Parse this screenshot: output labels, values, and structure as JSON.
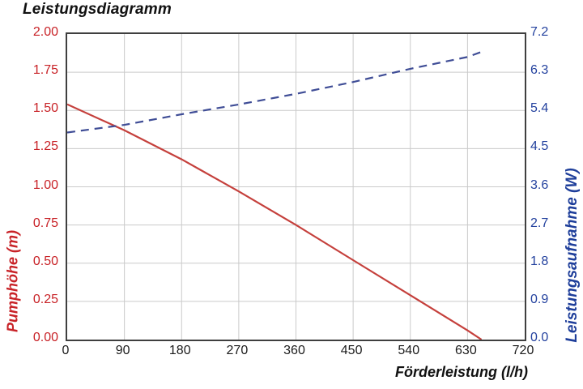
{
  "title": "Leistungsdiagramm",
  "axes": {
    "x_label": "Förderleistung (l/h)",
    "left_label": "Pumphöhe (m)",
    "right_label": "Leistungsaufnahme (W)"
  },
  "colors": {
    "red_text": "#c82227",
    "red_line": "#c5403c",
    "blue_text": "#23419e",
    "blue_line": "#3f4d96",
    "grid": "#cacaca",
    "border": "#3f3f3f",
    "black_text": "#1c1c1c"
  },
  "chart_data": {
    "type": "line",
    "title": "Leistungsdiagramm",
    "xlabel": "Förderleistung (l/h)",
    "xlim": [
      0,
      720
    ],
    "x_ticks": [
      "0",
      "90",
      "180",
      "270",
      "360",
      "450",
      "540",
      "630",
      "720"
    ],
    "grid": true,
    "legend": "none",
    "axes": {
      "left": {
        "label": "Pumphöhe (m)",
        "ylim": [
          0,
          2.0
        ],
        "ticks_top_to_bottom": [
          "2.00",
          "1.75",
          "1.50",
          "1.25",
          "1.00",
          "0.75",
          "0.50",
          "0.25",
          "0.00"
        ]
      },
      "right": {
        "label": "Leistungsaufnahme (W)",
        "ylim": [
          0,
          7.2
        ],
        "ticks_top_to_bottom": [
          "7.2",
          "6.3",
          "5.4",
          "4.5",
          "3.6",
          "2.7",
          "1.8",
          "0.9",
          "0.0"
        ]
      }
    },
    "series": [
      {
        "name": "Pumphöhe (m)",
        "axis": "left",
        "style": "solid",
        "color_key": "red_line",
        "x": [
          0,
          90,
          180,
          270,
          360,
          450,
          540,
          630,
          652
        ],
        "y": [
          1.54,
          1.37,
          1.18,
          0.97,
          0.75,
          0.52,
          0.29,
          0.06,
          0.0
        ]
      },
      {
        "name": "Leistungsaufnahme (W)",
        "axis": "right",
        "style": "dashed",
        "color_key": "blue_line",
        "x": [
          0,
          90,
          180,
          270,
          360,
          450,
          540,
          630,
          652
        ],
        "y": [
          4.88,
          5.06,
          5.31,
          5.54,
          5.79,
          6.07,
          6.38,
          6.66,
          6.78
        ]
      }
    ]
  }
}
